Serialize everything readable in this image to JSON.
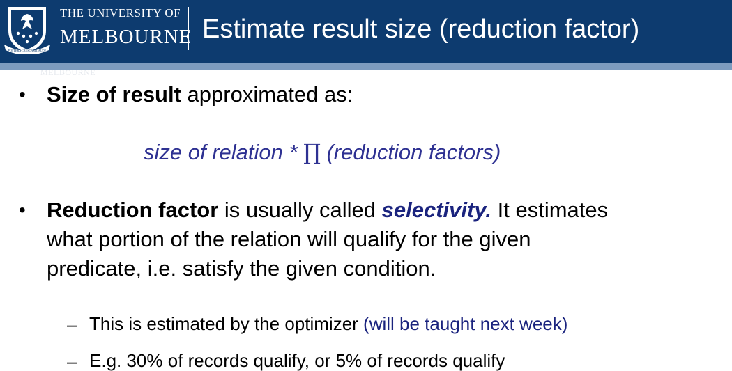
{
  "header": {
    "university_line1": "THE UNIVERSITY OF",
    "university_line2": "MELBOURNE",
    "crest_motto": "POSTERA CRESCAM LAUDE",
    "ghost_wordmark": "MELBOURNE",
    "title": "Estimate result size (reduction factor)"
  },
  "bullets": [
    {
      "marker": "•",
      "bold": "Size of result",
      "rest": " approximated as:"
    },
    {
      "marker": "•",
      "bold": "Reduction factor",
      "mid": " is usually called ",
      "emph": "selectivity.",
      "line1_rest": " It estimates",
      "line2": "what portion of the relation will qualify for the given",
      "line3": "predicate, i.e. satisfy the given condition."
    }
  ],
  "formula": {
    "left": "size of relation * ",
    "symbol": "∏",
    "right": " (reduction factors)"
  },
  "subbullets": [
    {
      "marker": "–",
      "text": "This is estimated by the optimizer ",
      "note": "(will be taught next week)"
    },
    {
      "marker": "–",
      "text": "E.g. 30% of records qualify, or 5% of records qualify"
    }
  ],
  "colors": {
    "header_bg": "#0d3b6f",
    "header_stripe": "#7d9cbf",
    "formula_blue": "#2e3192",
    "emphasis_navy": "#1a237e"
  }
}
